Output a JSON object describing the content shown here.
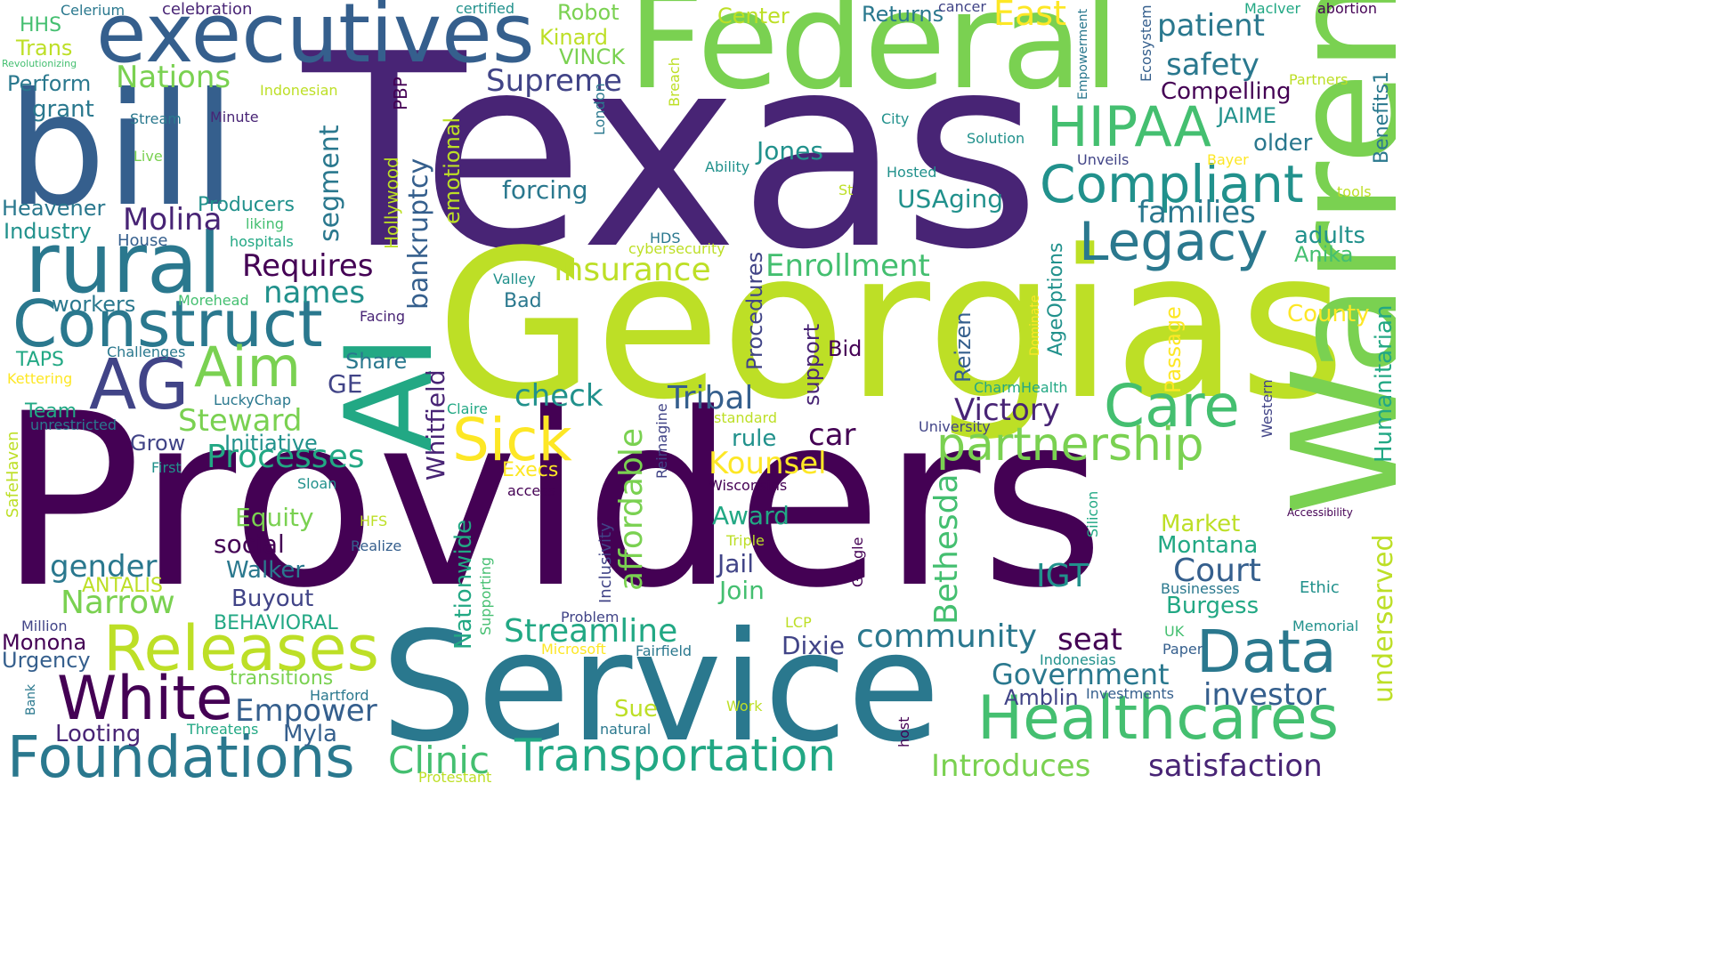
{
  "colors": {
    "background": "#ffffff",
    "palette": [
      "#440154",
      "#482475",
      "#414487",
      "#355f8d",
      "#2a788e",
      "#21918c",
      "#22a884",
      "#44bf70",
      "#7ad151",
      "#bddf26",
      "#fde725"
    ]
  },
  "words": {
    "providers": "Providers",
    "texas": "Texas",
    "georgias": "Georgias",
    "service": "Service",
    "federal": "Federal",
    "bill": "bill",
    "warren": "Warren",
    "executives": "executives",
    "rural": "rural",
    "construct": "Construct",
    "ai": "AI",
    "ag": "AG",
    "aim": "Aim",
    "foundations": "Foundations",
    "healthcares": "Healthcares",
    "transportation": "Transportation",
    "releases": "Releases",
    "white": "White",
    "data": "Data",
    "care": "Care",
    "sick": "Sick",
    "partnership": "partnership",
    "legacy": "Legacy",
    "compliant": "Compliant",
    "hipaa": "HIPAA",
    "east": "East",
    "families": "families",
    "patient": "patient",
    "safety": "safety",
    "compelling": "Compelling",
    "community": "community",
    "government": "Government",
    "investor": "investor",
    "satisfaction": "satisfaction",
    "introduces": "Introduces",
    "clinic": "Clinic",
    "streamline": "Streamline",
    "court": "Court",
    "empower": "Empower",
    "narrow": "Narrow",
    "gender": "gender",
    "steward": "Steward",
    "processes": "Processes",
    "insurance": "Insurance",
    "enrollment": "Enrollment",
    "requires": "Requires",
    "names": "names",
    "molina": "Molina",
    "supreme": "Supreme",
    "nations": "Nations",
    "victory": "Victory",
    "tribal": "Tribal",
    "kounsel": "Kounsel",
    "check": "check",
    "affordable": "affordable",
    "bethesda": "Bethesda",
    "underserved": "underserved",
    "humanitarian": "Humanitarian",
    "segment": "segment",
    "bankruptcy": "bankruptcy",
    "emotional": "emotional",
    "nationwide": "Nationwide",
    "whitfield": "Whitfield",
    "seat": "seat",
    "igt": "IGT",
    "dixie": "Dixie",
    "jail": "Jail",
    "join": "Join",
    "award": "Award",
    "rule": "rule",
    "car": "car",
    "usaging": "USAging",
    "forcing": "forcing",
    "jones": "Jones",
    "compliant_small": "",
    "adults": "adults",
    "older": "older",
    "jaime": "JAIME",
    "anika": "Anika",
    "county": "County",
    "market": "Market",
    "montana": "Montana",
    "burgess": "Burgess",
    "amblin": "Amblin",
    "looting": "Looting",
    "myla": "Myla",
    "sue": "Sue",
    "buyout": "Buyout",
    "walker": "Walker",
    "social": "social",
    "equity": "Equity",
    "initiative": "Initiative",
    "grow": "Grow",
    "team": "Team",
    "taps": "TAPS",
    "workers": "workers",
    "heavener": "Heavener",
    "industry": "Industry",
    "producers": "Producers",
    "perform": "Perform",
    "grant": "grant",
    "trans": "Trans",
    "hhs": "HHS",
    "robot": "Robot",
    "kinard": "Kinard",
    "vinck": "VINCK",
    "center": "Center",
    "returns": "Returns",
    "ge": "GE",
    "share": "Share",
    "bid": "Bid",
    "support": "support",
    "procedures": "Procedures",
    "passage": "Passage",
    "reizen": "Reizen",
    "ageoptions": "AgeOptions",
    "benefits1": "Benefits1",
    "behavioral": "BEHAVIORAL",
    "antalis": "ANTALIS",
    "monona": "Monona",
    "urgency": "Urgency",
    "transitions": "transitions",
    "execs": "Execs",
    "bad": "Bad",
    "pbp": "PBP",
    "hollywood": "Hollywood",
    "inclusivity": "Inclusivity",
    "celerium": "Celerium",
    "celebration": "celebration",
    "certified": "certified",
    "cancer": "cancer",
    "maciver": "MacIver",
    "abortion": "abortion",
    "revolutionizing": "Revolutionizing",
    "indonesian": "Indonesian",
    "stream": "Stream",
    "minute": "Minute",
    "live": "Live",
    "liking": "liking",
    "house": "House",
    "hospitals": "hospitals",
    "morehead": "Morehead",
    "challenges": "Challenges",
    "kettering": "Kettering",
    "luckychap": "LuckyChap",
    "claire": "Claire",
    "unrestricted": "unrestricted",
    "first": "First",
    "safehaven": "SafeHaven",
    "sloan": "Sloan",
    "access": "access",
    "hfs": "HFS",
    "realize": "Realize",
    "triple": "Triple",
    "wisconsins": "Wisconsins",
    "million": "Million",
    "problem": "Problem",
    "microsoft": "Microsoft",
    "fairfield": "Fairfield",
    "lcp": "LCP",
    "hartford": "Hartford",
    "threatens": "Threatens",
    "work": "Work",
    "natural": "natural",
    "protestant": "Protestant",
    "bank": "Bank",
    "host": "host",
    "indonesias": "Indonesias",
    "investments": "Investments",
    "paper": "Paper",
    "uk": "UK",
    "memorial": "Memorial",
    "ethic": "Ethic",
    "businesses": "Businesses",
    "accessibility": "Accessibility",
    "university": "University",
    "standard": "standard",
    "charmhealth": "CharmHealth",
    "hds": "HDS",
    "cybersecurity": "cybersecurity",
    "valley": "Valley",
    "facing": "Facing",
    "ability": "Ability",
    "hosted": "Hosted",
    "st": "St",
    "city": "City",
    "solution": "Solution",
    "unveils": "Unveils",
    "bayer": "Bayer",
    "tools": "tools",
    "partners": "Partners",
    "london": "London",
    "breach": "Breach",
    "empowerment": "Empowerment",
    "ecosystem": "Ecosystem",
    "dominate": "Dominate",
    "western": "Western",
    "silicon": "Silicon",
    "google": "Google",
    "reimagine": "Reimagine",
    "supporting": "Supporting"
  }
}
